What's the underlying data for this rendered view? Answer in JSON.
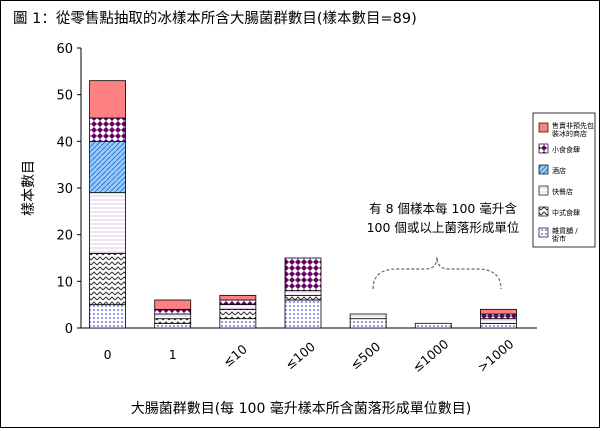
{
  "chart_data": {
    "type": "bar",
    "stacked": true,
    "title": "圖 1：從零售點抽取的冰樣本所含大腸菌群數目(樣本數目=89)",
    "xlabel": "大腸菌群數目(每 100 毫升樣本所含菌落形成單位數目)",
    "ylabel": "樣本數目",
    "ylim": [
      0,
      60
    ],
    "yticks": [
      0,
      10,
      20,
      30,
      40,
      50,
      60
    ],
    "grid": false,
    "legend_position": "right",
    "categories": [
      "0",
      "1",
      "≤10",
      "≤100",
      "≤500",
      "≤1000",
      ">1000"
    ],
    "series": [
      {
        "name": "雜貨舖 / 街市",
        "color": "#ccccff",
        "pattern": "dots",
        "values": [
          5,
          1,
          2,
          6,
          2,
          1,
          1
        ]
      },
      {
        "name": "中式食肆",
        "color": "#808080",
        "pattern": "zigzag",
        "values": [
          11,
          1,
          2,
          1,
          0,
          0,
          0
        ]
      },
      {
        "name": "快餐店",
        "color": "#fdf5fd",
        "pattern": "hlines",
        "values": [
          13,
          1,
          1,
          1,
          1,
          0,
          1
        ]
      },
      {
        "name": "酒店",
        "color": "#99ccff",
        "pattern": "diagonal",
        "values": [
          11,
          0,
          0,
          0,
          0,
          0,
          0
        ]
      },
      {
        "name": "小食食肆",
        "color": "#660066",
        "pattern": "diamond",
        "values": [
          5,
          1,
          1,
          7,
          0,
          0,
          1
        ]
      },
      {
        "name": "售賣非預先包裝冰的商店",
        "color": "#ff8080",
        "pattern": "solid",
        "values": [
          8,
          2,
          1,
          0,
          0,
          0,
          1
        ]
      }
    ],
    "annotation": {
      "line1": "有 8 個樣本每 100 毫升含",
      "line2": "100 個或以上菌落形成單位"
    }
  }
}
